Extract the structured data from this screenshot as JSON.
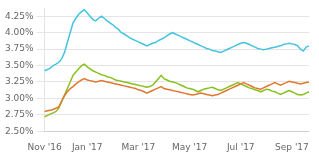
{
  "chart_data": {
    "type": "line",
    "categories": [
      "Nov '16",
      null,
      null,
      null,
      null,
      null,
      null,
      null,
      null,
      null,
      null,
      null,
      null,
      null,
      null,
      "Jan '17",
      null,
      null,
      null,
      null,
      null,
      null,
      null,
      null,
      null,
      null,
      null,
      null,
      null,
      null,
      null,
      null,
      null,
      "Mar '17",
      null,
      null,
      null,
      null,
      null,
      null,
      null,
      null,
      null,
      null,
      null,
      null,
      null,
      null,
      null,
      null,
      null,
      "May '17",
      null,
      null,
      null,
      null,
      null,
      null,
      null,
      null,
      null,
      null,
      null,
      null,
      null,
      null,
      null,
      null,
      null,
      "Jul '17",
      null,
      null,
      null,
      null,
      null,
      null,
      null,
      null,
      null,
      null,
      null,
      null,
      null,
      null,
      null,
      null,
      null,
      "Sep '17",
      null,
      null,
      null,
      null,
      null,
      null
    ],
    "series": [
      {
        "color": "#45c4e0",
        "values": [
          3.42,
          3.44,
          3.46,
          3.5,
          3.52,
          3.55,
          3.6,
          3.7,
          3.85,
          4.0,
          4.15,
          4.22,
          4.28,
          4.32,
          4.35,
          4.3,
          4.25,
          4.2,
          4.18,
          4.22,
          4.25,
          4.22,
          4.18,
          4.15,
          4.12,
          4.08,
          4.05,
          4.0,
          3.98,
          3.95,
          3.92,
          3.9,
          3.88,
          3.86,
          3.84,
          3.82,
          3.8,
          3.82,
          3.84,
          3.85,
          3.88,
          3.9,
          3.92,
          3.95,
          3.98,
          4.0,
          3.98,
          3.96,
          3.94,
          3.92,
          3.9,
          3.88,
          3.86,
          3.84,
          3.82,
          3.8,
          3.78,
          3.76,
          3.75,
          3.73,
          3.72,
          3.71,
          3.7,
          3.72,
          3.74,
          3.76,
          3.78,
          3.8,
          3.82,
          3.84,
          3.85,
          3.84,
          3.82,
          3.8,
          3.78,
          3.76,
          3.75,
          3.74,
          3.75,
          3.76,
          3.77,
          3.78,
          3.79,
          3.8,
          3.82,
          3.83,
          3.84,
          3.83,
          3.82,
          3.8,
          3.75,
          3.72,
          3.78,
          3.8
        ]
      },
      {
        "color": "#e07832",
        "values": [
          2.8,
          2.81,
          2.82,
          2.83,
          2.85,
          2.87,
          2.96,
          3.04,
          3.1,
          3.15,
          3.18,
          3.22,
          3.25,
          3.28,
          3.3,
          3.28,
          3.27,
          3.26,
          3.25,
          3.26,
          3.27,
          3.26,
          3.25,
          3.24,
          3.23,
          3.22,
          3.21,
          3.2,
          3.19,
          3.18,
          3.17,
          3.16,
          3.15,
          3.13,
          3.12,
          3.1,
          3.08,
          3.1,
          3.12,
          3.14,
          3.16,
          3.18,
          3.15,
          3.14,
          3.13,
          3.12,
          3.11,
          3.1,
          3.09,
          3.08,
          3.07,
          3.06,
          3.05,
          3.06,
          3.07,
          3.08,
          3.07,
          3.06,
          3.05,
          3.04,
          3.05,
          3.06,
          3.08,
          3.1,
          3.12,
          3.14,
          3.16,
          3.18,
          3.2,
          3.22,
          3.24,
          3.22,
          3.2,
          3.18,
          3.16,
          3.15,
          3.14,
          3.16,
          3.18,
          3.2,
          3.22,
          3.24,
          3.22,
          3.2,
          3.22,
          3.24,
          3.26,
          3.25,
          3.24,
          3.23,
          3.22,
          3.23,
          3.24,
          3.25
        ]
      },
      {
        "color": "#88c020",
        "values": [
          2.72,
          2.74,
          2.76,
          2.78,
          2.8,
          2.85,
          2.95,
          3.05,
          3.15,
          3.25,
          3.35,
          3.4,
          3.45,
          3.5,
          3.52,
          3.48,
          3.45,
          3.42,
          3.4,
          3.38,
          3.36,
          3.35,
          3.33,
          3.32,
          3.3,
          3.28,
          3.27,
          3.26,
          3.25,
          3.24,
          3.23,
          3.22,
          3.21,
          3.2,
          3.19,
          3.18,
          3.17,
          3.18,
          3.2,
          3.25,
          3.3,
          3.35,
          3.3,
          3.28,
          3.26,
          3.25,
          3.24,
          3.22,
          3.2,
          3.18,
          3.16,
          3.15,
          3.14,
          3.12,
          3.1,
          3.12,
          3.14,
          3.15,
          3.16,
          3.17,
          3.15,
          3.13,
          3.12,
          3.14,
          3.16,
          3.18,
          3.2,
          3.22,
          3.24,
          3.22,
          3.2,
          3.18,
          3.16,
          3.15,
          3.13,
          3.12,
          3.1,
          3.12,
          3.14,
          3.13,
          3.11,
          3.1,
          3.08,
          3.06,
          3.08,
          3.1,
          3.12,
          3.1,
          3.08,
          3.06,
          3.05,
          3.06,
          3.08,
          3.1
        ]
      }
    ],
    "ylim": [
      2.5,
      4.37
    ],
    "yticks": [
      {
        "value": 2.5,
        "label": "2.50%"
      },
      {
        "value": 2.75,
        "label": "2.75%"
      },
      {
        "value": 3.0,
        "label": "3.00%"
      },
      {
        "value": 3.25,
        "label": "3.25%"
      },
      {
        "value": 3.5,
        "label": "3.50%"
      },
      {
        "value": 3.75,
        "label": "3.75%"
      },
      {
        "value": 4.0,
        "label": "4.00%"
      },
      {
        "value": 4.25,
        "label": "4.25%"
      }
    ],
    "grid": "y"
  }
}
